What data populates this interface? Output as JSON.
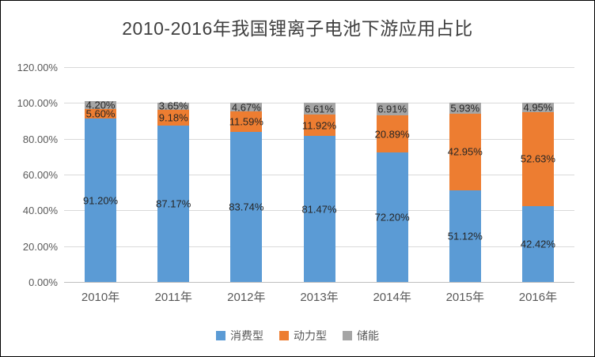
{
  "chart_data": {
    "type": "bar",
    "stacked": true,
    "title": "2010-2016年我国锂离子电池下游应用占比",
    "categories": [
      "2010年",
      "2011年",
      "2012年",
      "2013年",
      "2014年",
      "2015年",
      "2016年"
    ],
    "series": [
      {
        "name": "消费型",
        "color": "#5B9BD5",
        "values": [
          91.2,
          87.17,
          83.74,
          81.47,
          72.2,
          51.12,
          42.42
        ]
      },
      {
        "name": "动力型",
        "color": "#ED7D31",
        "values": [
          5.6,
          9.18,
          11.59,
          11.92,
          20.89,
          42.95,
          52.63
        ]
      },
      {
        "name": "储能",
        "color": "#A5A5A5",
        "values": [
          4.2,
          3.65,
          4.67,
          6.61,
          6.91,
          5.93,
          4.95
        ]
      }
    ],
    "y_ticks": [
      "120.00%",
      "100.00%",
      "80.00%",
      "60.00%",
      "40.00%",
      "20.00%",
      "0.00%"
    ],
    "ylim": [
      0,
      120
    ],
    "y_tick_step": 20,
    "grid": true,
    "data_labels": true,
    "legend_position": "bottom"
  }
}
